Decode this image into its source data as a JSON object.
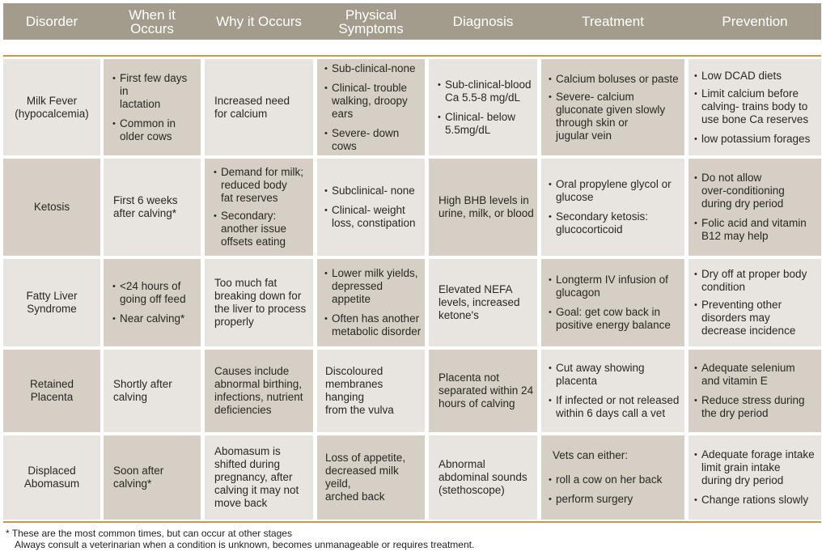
{
  "headers": {
    "disorder": "Disorder",
    "when_1": "When it",
    "when_2": "Occurs",
    "why": "Why it Occurs",
    "physical_1": "Physical",
    "physical_2": "Symptoms",
    "diagnosis": "Diagnosis",
    "treatment": "Treatment",
    "prevention": "Prevention"
  },
  "rows": [
    {
      "disorder": [
        "Milk Fever",
        "(hypocalcemia)"
      ],
      "when": [
        [
          "First few days in",
          "lactation"
        ],
        [
          "Common in",
          "older cows"
        ]
      ],
      "why": [
        "Increased need",
        "for calcium"
      ],
      "symptoms": [
        [
          "Sub-clinical-none"
        ],
        [
          "Clinical- trouble",
          "walking, droopy ears"
        ],
        [
          "Severe- down cows"
        ]
      ],
      "diagnosis": [
        [
          "Sub-clinical-blood",
          "Ca 5.5-8   mg/dL"
        ],
        [
          "Clinical- below",
          "5.5mg/dL"
        ]
      ],
      "treatment": [
        [
          "Calcium boluses or paste"
        ],
        [
          "Severe- calcium",
          "gluconate given slowly",
          "through skin or",
          "jugular vein"
        ]
      ],
      "prevention": [
        [
          "Low DCAD diets"
        ],
        [
          "Limit calcium before",
          "calving- trains body to",
          "use bone Ca reserves"
        ],
        [
          "low potassium forages"
        ]
      ]
    },
    {
      "disorder": [
        "Ketosis"
      ],
      "when": [
        "First 6 weeks",
        "after calving*"
      ],
      "why": [
        [
          "Demand for milk;",
          "reduced body",
          "fat reserves"
        ],
        [
          "Secondary:",
          "another issue",
          "offsets eating"
        ]
      ],
      "symptoms": [
        [
          "Subclinical- none"
        ],
        [
          "Clinical- weight",
          "loss, constipation"
        ]
      ],
      "diagnosis": [
        "High BHB levels in",
        "urine, milk, or blood"
      ],
      "treatment": [
        [
          "Oral propylene glycol or",
          "glucose"
        ],
        [
          "Secondary ketosis:",
          "glucocorticoid"
        ]
      ],
      "prevention": [
        [
          "Do not allow",
          "over-conditioning",
          "during dry period"
        ],
        [
          "Folic acid and vitamin",
          "B12 may help"
        ]
      ]
    },
    {
      "disorder": [
        "Fatty Liver",
        "Syndrome"
      ],
      "when": [
        [
          "<24 hours of",
          "going off feed"
        ],
        [
          "Near calving*"
        ]
      ],
      "why": [
        "Too much fat",
        "breaking down for",
        "the liver to process",
        "properly"
      ],
      "symptoms": [
        [
          "Lower milk yields,",
          "depressed appetite"
        ],
        [
          "Often has another",
          "metabolic disorder"
        ]
      ],
      "diagnosis": [
        "Elevated NEFA",
        "levels, increased",
        "ketone's"
      ],
      "treatment": [
        [
          "Longterm IV infusion of",
          "glucagon"
        ],
        [
          "Goal: get cow back in",
          "positive energy balance"
        ]
      ],
      "prevention": [
        [
          "Dry off at proper body",
          "condition"
        ],
        [
          "Preventing other",
          "disorders may",
          "decrease incidence"
        ]
      ]
    },
    {
      "disorder": [
        "Retained",
        "Placenta"
      ],
      "when": [
        "Shortly after",
        "calving"
      ],
      "why": [
        "Causes include",
        "abnormal birthing,",
        "infections, nutrient",
        "deficiencies"
      ],
      "symptoms": [
        "Discoloured",
        "membranes",
        "hanging",
        "from the vulva"
      ],
      "diagnosis": [
        "Placenta not",
        "separated within 24",
        "hours of calving"
      ],
      "treatment": [
        [
          "Cut away showing",
          "placenta"
        ],
        [
          "If infected or not released",
          "within 6 days call a vet"
        ]
      ],
      "prevention": [
        [
          "Adequate selenium",
          "and vitamin E"
        ],
        [
          "Reduce stress during",
          "the dry period"
        ]
      ]
    },
    {
      "disorder": [
        "Displaced",
        "Abomasum"
      ],
      "when": [
        "Soon after",
        "calving*"
      ],
      "why": [
        "Abomasum is",
        "shifted during",
        "pregnancy, after",
        "calving it may not",
        "move back"
      ],
      "symptoms": [
        "Loss of appetite,",
        "decreased milk yeild,",
        "arched back"
      ],
      "diagnosis": [
        "Abnormal",
        "abdominal sounds",
        "(stethoscope)"
      ],
      "treatment_intro": "Vets can either:",
      "treatment": [
        [
          "roll a cow on her back"
        ],
        [
          "perform surgery"
        ]
      ],
      "prevention": [
        [
          "Adequate forage intake",
          "limit grain intake",
          "during dry period"
        ],
        [
          "Change rations slowly"
        ]
      ]
    }
  ],
  "footnote_1": "* These are the most common times, but can occur at other stages",
  "footnote_2": "Always consult a veterinarian when a condition is unknown, becomes unmanageable or requires treatment."
}
